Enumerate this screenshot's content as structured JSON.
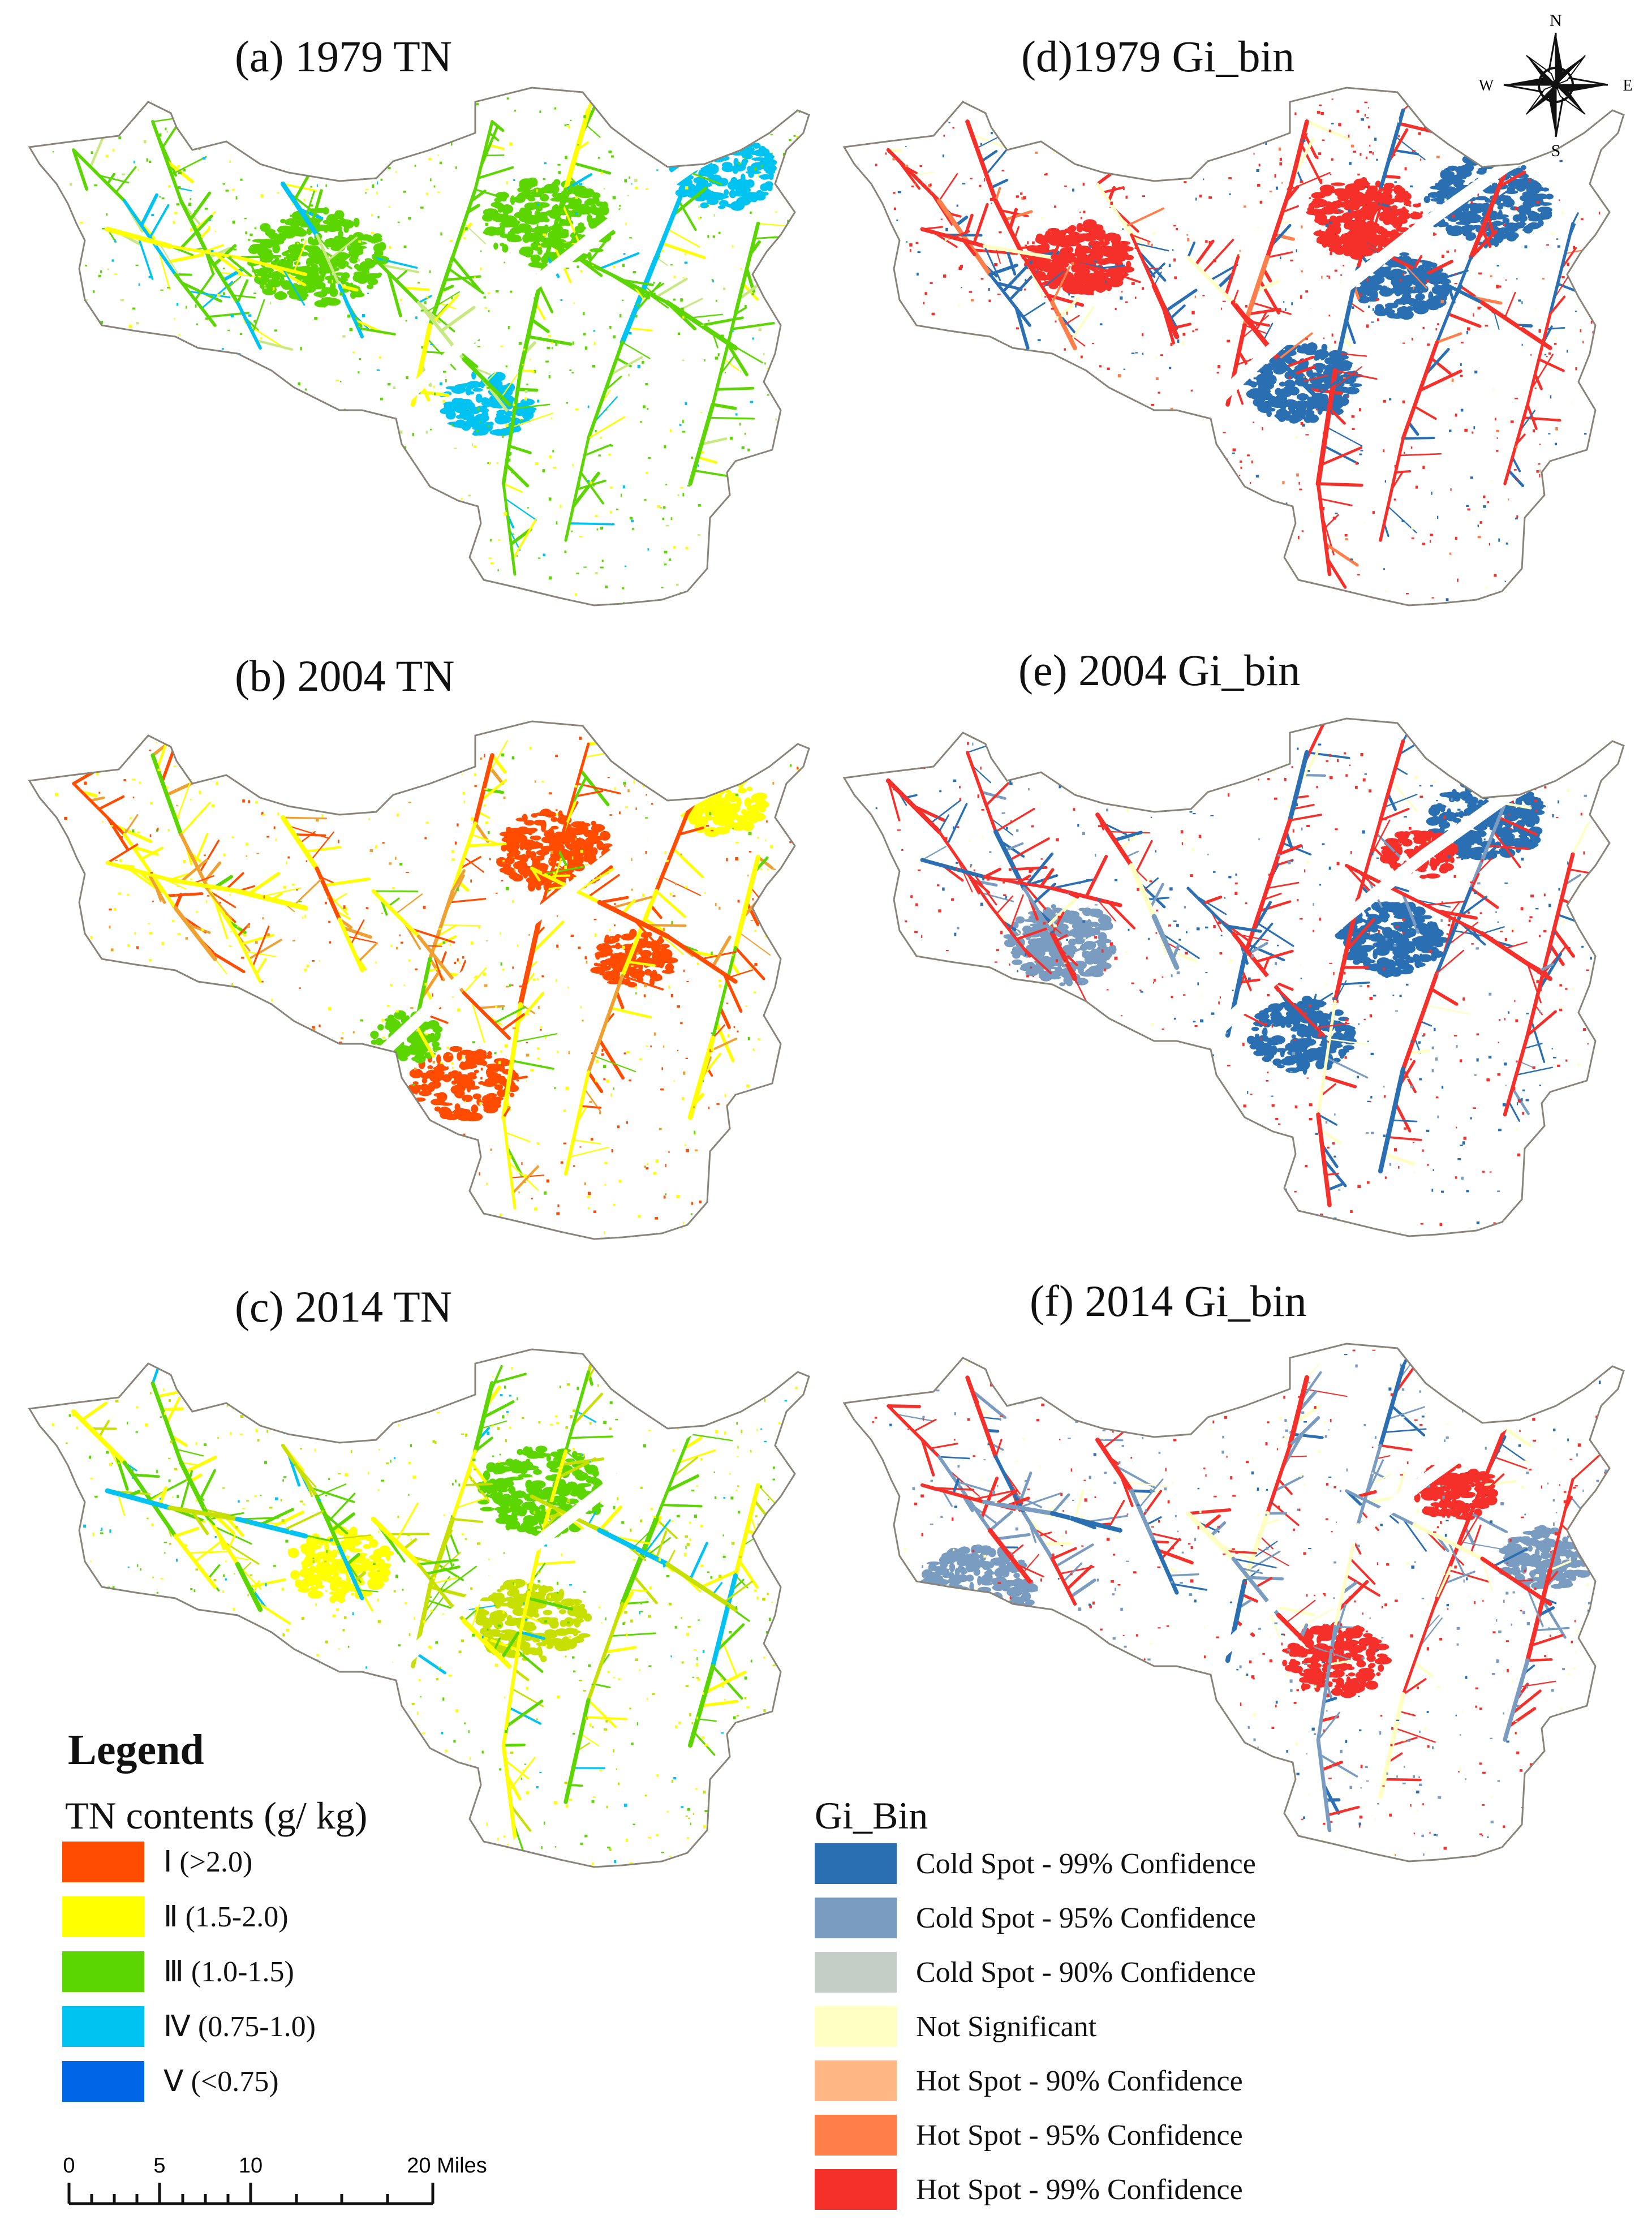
{
  "panels": [
    {
      "id": "a",
      "title": "(a) 1979 TN",
      "kind": "tn",
      "year": 1979
    },
    {
      "id": "b",
      "title": "(b) 2004 TN",
      "kind": "tn",
      "year": 2004
    },
    {
      "id": "c",
      "title": "(c) 2014 TN",
      "kind": "tn",
      "year": 2014
    },
    {
      "id": "d",
      "title": "(d)1979 Gi_bin",
      "kind": "gi",
      "year": 1979
    },
    {
      "id": "e",
      "title": "(e) 2004 Gi_bin",
      "kind": "gi",
      "year": 2004
    },
    {
      "id": "f",
      "title": "(f) 2014 Gi_bin",
      "kind": "gi",
      "year": 2014
    }
  ],
  "compass": {
    "n": "N",
    "s": "S",
    "e": "E",
    "w": "W"
  },
  "tn_legend": {
    "heading": "Legend",
    "subtitle": "TN contents (g/ kg)",
    "items": [
      {
        "label": "Ⅰ (>2.0)",
        "color": "#ff4c00"
      },
      {
        "label": "Ⅱ (1.5-2.0)",
        "color": "#ffff00"
      },
      {
        "label": "Ⅲ (1.0-1.5)",
        "color": "#5cd600"
      },
      {
        "label": "Ⅳ (0.75-1.0)",
        "color": "#00c3f2"
      },
      {
        "label": "Ⅴ (<0.75)",
        "color": "#0066e8"
      }
    ]
  },
  "gi_legend": {
    "subtitle": "Gi_Bin",
    "items": [
      {
        "label": "Cold Spot - 99% Confidence",
        "color": "#2b6fb3"
      },
      {
        "label": "Cold Spot - 95% Confidence",
        "color": "#7a9cc0"
      },
      {
        "label": "Cold Spot - 90% Confidence",
        "color": "#c4cec7"
      },
      {
        "label": "Not Significant",
        "color": "#ffffc4"
      },
      {
        "label": "Hot Spot - 90% Confidence",
        "color": "#ffb885"
      },
      {
        "label": "Hot Spot - 95% Confidence",
        "color": "#ff7e4a"
      },
      {
        "label": "Hot Spot - 99% Confidence",
        "color": "#f5302a"
      }
    ]
  },
  "scalebar": {
    "ticks": [
      "0",
      "5",
      "10",
      "20 Miles"
    ]
  }
}
